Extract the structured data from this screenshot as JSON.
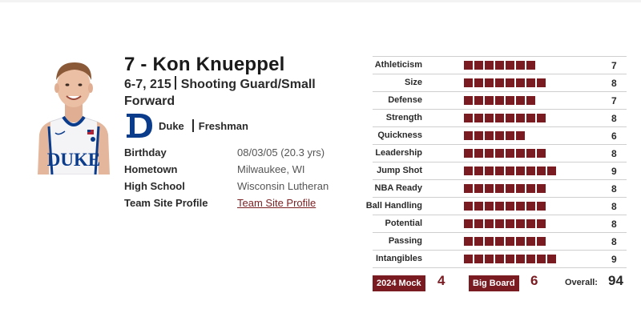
{
  "player": {
    "name": "7 - Kon Knueppel",
    "height_weight": "6-7, 215",
    "position": "Shooting Guard/Small Forward",
    "team": "Duke",
    "class": "Freshman"
  },
  "info": [
    {
      "label": "Birthday",
      "value": "08/03/05 (20.3 yrs)",
      "link": false
    },
    {
      "label": "Hometown",
      "value": "Milwaukee, WI",
      "link": false
    },
    {
      "label": "High School",
      "value": "Wisconsin Lutheran",
      "link": false
    },
    {
      "label": "Team Site Profile",
      "value": "Team Site Profile",
      "link": true
    }
  ],
  "ratings": [
    {
      "label": "Athleticism",
      "value": 7
    },
    {
      "label": "Size",
      "value": 8
    },
    {
      "label": "Defense",
      "value": 7
    },
    {
      "label": "Strength",
      "value": 8
    },
    {
      "label": "Quickness",
      "value": 6
    },
    {
      "label": "Leadership",
      "value": 8
    },
    {
      "label": "Jump Shot",
      "value": 9
    },
    {
      "label": "NBA Ready",
      "value": 8
    },
    {
      "label": "Ball Handling",
      "value": 8
    },
    {
      "label": "Potential",
      "value": 8
    },
    {
      "label": "Passing",
      "value": 8
    },
    {
      "label": "Intangibles",
      "value": 9
    }
  ],
  "footer": {
    "mock_label": "2024 Mock",
    "mock_value": "4",
    "bigboard_label": "Big Board",
    "bigboard_value": "6",
    "overall_label": "Overall:",
    "overall_value": "94"
  },
  "photo": {
    "jersey_text": "DUKE"
  },
  "colors": {
    "accent": "#7a1a21",
    "duke_blue": "#0b3c8c",
    "text": "#2a2a2a",
    "link": "#7a1f22"
  },
  "icons": {
    "team_logo": "duke-d-logo-icon"
  }
}
